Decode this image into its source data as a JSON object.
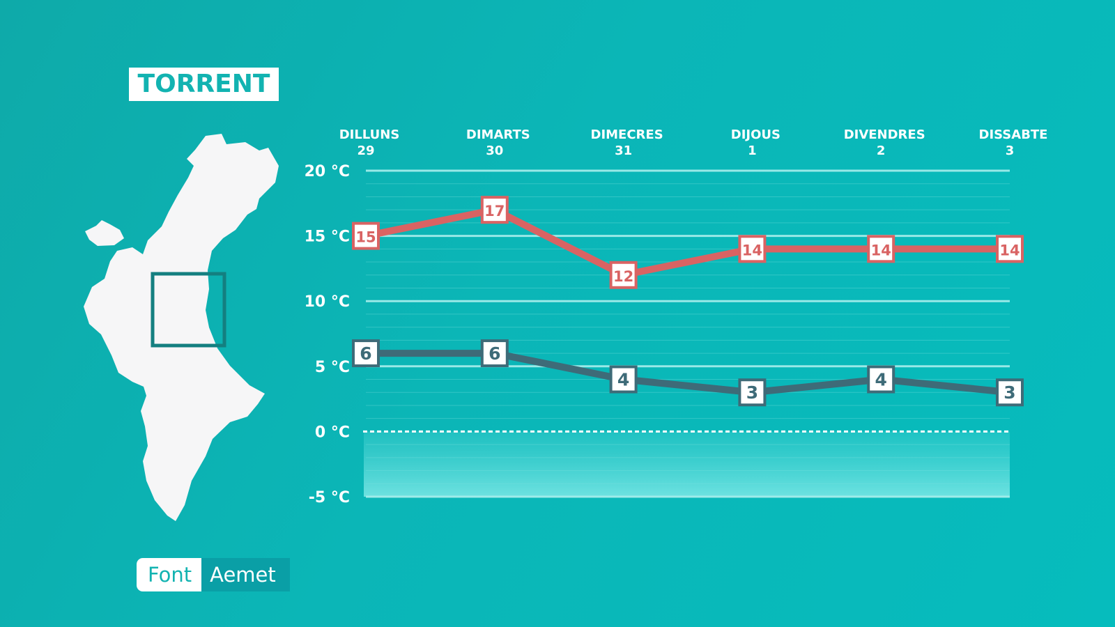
{
  "location": {
    "title": "TORRENT"
  },
  "source": {
    "label": "Font",
    "value": "Aemet"
  },
  "colors": {
    "background": "#0bb5b5",
    "max_line": "#d96363",
    "min_line": "#3e6b78",
    "map_fill": "#f6f6f7",
    "map_marker": "#147f80",
    "grid": "#7fe2e0"
  },
  "icons": {
    "map": "valencian-community-map-icon"
  },
  "chart_data": {
    "type": "line",
    "days": [
      {
        "name": "DILLUNS",
        "date": "29"
      },
      {
        "name": "DIMARTS",
        "date": "30"
      },
      {
        "name": "DIMECRES",
        "date": "31"
      },
      {
        "name": "DIJOUS",
        "date": "1"
      },
      {
        "name": "DIVENDRES",
        "date": "2"
      },
      {
        "name": "DISSABTE",
        "date": "3"
      }
    ],
    "y_ticks": [
      {
        "value": 20,
        "label": "20 °C"
      },
      {
        "value": 15,
        "label": "15 °C"
      },
      {
        "value": 10,
        "label": "10 °C"
      },
      {
        "value": 5,
        "label": "5 °C"
      },
      {
        "value": 0,
        "label": "0 °C"
      },
      {
        "value": -5,
        "label": "-5 °C"
      }
    ],
    "ylim": [
      -5,
      20
    ],
    "series": [
      {
        "key": "max",
        "values": [
          15,
          17,
          12,
          14,
          14,
          14
        ],
        "color": "#d96363"
      },
      {
        "key": "min",
        "values": [
          6,
          6,
          4,
          3,
          4,
          3
        ],
        "color": "#3e6b78"
      }
    ],
    "grid": true,
    "zero_line": "dashed"
  }
}
